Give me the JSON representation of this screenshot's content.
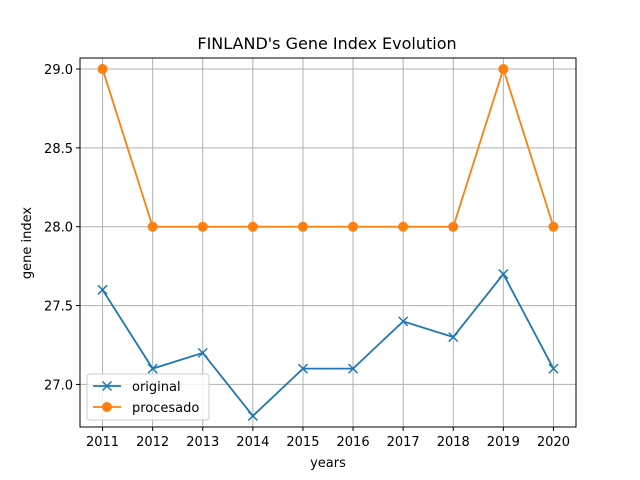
{
  "chart_data": {
    "type": "line",
    "title": "FINLAND's Gene Index Evolution",
    "xlabel": "years",
    "ylabel": "gene index",
    "x": [
      2011,
      2012,
      2013,
      2014,
      2015,
      2016,
      2017,
      2018,
      2019,
      2020
    ],
    "x_tick_labels": [
      "2011",
      "2012",
      "2013",
      "2014",
      "2015",
      "2016",
      "2017",
      "2018",
      "2019",
      "2020"
    ],
    "ylim": [
      26.73,
      29.07
    ],
    "y_ticks": [
      27.0,
      27.5,
      28.0,
      28.5,
      29.0
    ],
    "y_tick_labels": [
      "27.0",
      "27.5",
      "28.0",
      "28.5",
      "29.0"
    ],
    "grid": true,
    "legend_position": "lower-left",
    "series": [
      {
        "name": "original",
        "values": [
          27.6,
          27.1,
          27.2,
          26.8,
          27.1,
          27.1,
          27.4,
          27.3,
          27.7,
          27.1
        ],
        "color": "#1f77b4",
        "marker": "x"
      },
      {
        "name": "procesado",
        "values": [
          29.0,
          28.0,
          28.0,
          28.0,
          28.0,
          28.0,
          28.0,
          28.0,
          29.0,
          28.0
        ],
        "color": "#ff7f0e",
        "marker": "circle"
      }
    ]
  }
}
